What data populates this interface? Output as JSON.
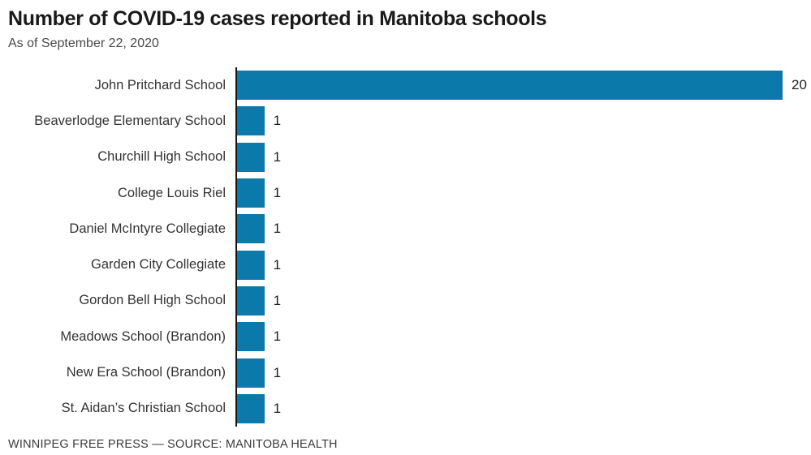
{
  "header": {
    "title": "Number of COVID-19 cases reported in Manitoba schools",
    "subtitle": "As of September 22, 2020"
  },
  "footer": {
    "attribution": "WINNIPEG FREE PRESS — SOURCE: MANITOBA HEALTH"
  },
  "colors": {
    "bar": "#0b79a9",
    "axis": "#141414",
    "title_text": "#191919",
    "label_text": "#333333"
  },
  "chart_data": {
    "type": "bar",
    "orientation": "horizontal",
    "title": "Number of COVID-19 cases reported in Manitoba schools",
    "subtitle": "As of September 22, 2020",
    "source": "WINNIPEG FREE PRESS — SOURCE: MANITOBA HEALTH",
    "categories": [
      "John Pritchard School",
      "Beaverlodge Elementary School",
      "Churchill High School",
      "College Louis Riel",
      "Daniel McIntyre Collegiate",
      "Garden City Collegiate",
      "Gordon Bell High School",
      "Meadows School (Brandon)",
      "New Era School (Brandon)",
      "St. Aidan’s Christian School"
    ],
    "values": [
      20,
      1,
      1,
      1,
      1,
      1,
      1,
      1,
      1,
      1
    ],
    "value_labels": [
      "20",
      "1",
      "1",
      "1",
      "1",
      "1",
      "1",
      "1",
      "1",
      "1"
    ],
    "xlabel": "",
    "ylabel": "",
    "xlim": [
      0,
      20
    ],
    "grid": false,
    "legend": false,
    "bar_color": "#0b79a9"
  }
}
